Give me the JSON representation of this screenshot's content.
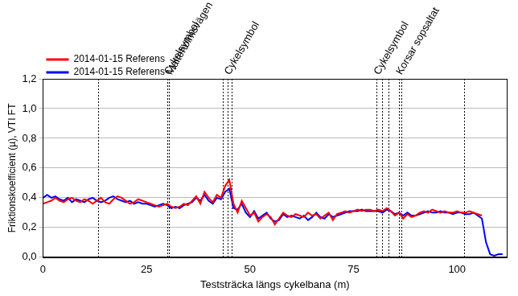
{
  "chart_data": {
    "type": "line",
    "x_label": "Teststräcka längs cykelbana (m)",
    "y_label": "Friktionskoefficient (µ), VTI FT",
    "xlim": [
      0,
      112
    ],
    "xticks": [
      0,
      25,
      50,
      75,
      100
    ],
    "ylim": [
      0,
      1.2
    ],
    "yticks": [
      {
        "value": 0,
        "label": "0,0"
      },
      {
        "value": 0.2,
        "label": "0,2"
      },
      {
        "value": 0.4,
        "label": "0,4"
      },
      {
        "value": 0.6,
        "label": "0,6"
      },
      {
        "value": 0.8,
        "label": "0,8"
      },
      {
        "value": 1.0,
        "label": "1,0"
      },
      {
        "value": 1.2,
        "label": "1,2"
      }
    ],
    "grid": "y",
    "legend": "top-left",
    "vlines": [
      13.3,
      30,
      30.5,
      43.5,
      44.5,
      45.5,
      80.6,
      81.8,
      83.4,
      86,
      86.5,
      101.8
    ],
    "annotations": [
      {
        "text": "Cykelsymbol",
        "x": 30
      },
      {
        "text": "Malteholmsvägen",
        "x": 30.5
      },
      {
        "text": "Cykelsymbol",
        "x": 44.5
      },
      {
        "text": "Cykelsymbol",
        "x": 80.6
      },
      {
        "text": "Korsar sopsaltat",
        "x": 86
      }
    ],
    "series": [
      {
        "name": "2014-01-15 Referens",
        "color": "#ff0000",
        "x": [
          0,
          1,
          2,
          3,
          4,
          5,
          6,
          7,
          8,
          9,
          10,
          11,
          12,
          13,
          14,
          15,
          16,
          17,
          18,
          19,
          20,
          21,
          22,
          23,
          24,
          25,
          26,
          27,
          28,
          29,
          30,
          31,
          32,
          33,
          34,
          35,
          36,
          37,
          38,
          39,
          40,
          41,
          42,
          43,
          44,
          45,
          46,
          47,
          48,
          49,
          50,
          51,
          52,
          53,
          54,
          55,
          56,
          57,
          58,
          59,
          60,
          61,
          62,
          63,
          64,
          65,
          66,
          67,
          68,
          69,
          70,
          71,
          72,
          73,
          74,
          75,
          76,
          77,
          78,
          79,
          80,
          81,
          82,
          83,
          84,
          85,
          86,
          87,
          88,
          89,
          90,
          91,
          92,
          93,
          94,
          95,
          96,
          97,
          98,
          99,
          100,
          101,
          102,
          103,
          104,
          105,
          106
        ],
        "values": [
          0.36,
          0.37,
          0.38,
          0.4,
          0.38,
          0.37,
          0.39,
          0.4,
          0.38,
          0.37,
          0.39,
          0.38,
          0.36,
          0.38,
          0.4,
          0.37,
          0.36,
          0.39,
          0.41,
          0.4,
          0.38,
          0.36,
          0.37,
          0.39,
          0.38,
          0.37,
          0.36,
          0.35,
          0.34,
          0.35,
          0.36,
          0.34,
          0.33,
          0.34,
          0.36,
          0.35,
          0.38,
          0.41,
          0.36,
          0.44,
          0.4,
          0.37,
          0.42,
          0.4,
          0.48,
          0.52,
          0.36,
          0.3,
          0.38,
          0.33,
          0.28,
          0.3,
          0.24,
          0.27,
          0.29,
          0.27,
          0.22,
          0.26,
          0.3,
          0.28,
          0.27,
          0.29,
          0.28,
          0.27,
          0.3,
          0.28,
          0.29,
          0.26,
          0.28,
          0.3,
          0.25,
          0.29,
          0.3,
          0.31,
          0.3,
          0.31,
          0.32,
          0.31,
          0.32,
          0.32,
          0.31,
          0.32,
          0.31,
          0.33,
          0.31,
          0.28,
          0.3,
          0.26,
          0.29,
          0.27,
          0.28,
          0.3,
          0.31,
          0.3,
          0.32,
          0.31,
          0.3,
          0.31,
          0.3,
          0.3,
          0.31,
          0.3,
          0.3,
          0.31,
          0.3,
          0.29,
          0.28
        ]
      },
      {
        "name": "2014-01-15 Referens",
        "color": "#0000ff",
        "x": [
          0,
          1,
          2,
          3,
          4,
          5,
          6,
          7,
          8,
          9,
          10,
          11,
          12,
          13,
          14,
          15,
          16,
          17,
          18,
          19,
          20,
          21,
          22,
          23,
          24,
          25,
          26,
          27,
          28,
          29,
          30,
          31,
          32,
          33,
          34,
          35,
          36,
          37,
          38,
          39,
          40,
          41,
          42,
          43,
          44,
          45,
          46,
          47,
          48,
          49,
          50,
          51,
          52,
          53,
          54,
          55,
          56,
          57,
          58,
          59,
          60,
          61,
          62,
          63,
          64,
          65,
          66,
          67,
          68,
          69,
          70,
          71,
          72,
          73,
          74,
          75,
          76,
          77,
          78,
          79,
          80,
          81,
          82,
          83,
          84,
          85,
          86,
          87,
          88,
          89,
          90,
          91,
          92,
          93,
          94,
          95,
          96,
          97,
          98,
          99,
          100,
          101,
          102,
          103,
          104,
          105,
          106,
          107,
          108,
          109,
          110,
          111
        ],
        "values": [
          0.4,
          0.42,
          0.4,
          0.41,
          0.39,
          0.38,
          0.4,
          0.37,
          0.39,
          0.38,
          0.37,
          0.39,
          0.4,
          0.38,
          0.37,
          0.38,
          0.4,
          0.41,
          0.39,
          0.38,
          0.37,
          0.38,
          0.36,
          0.37,
          0.36,
          0.36,
          0.35,
          0.34,
          0.35,
          0.36,
          0.35,
          0.33,
          0.34,
          0.33,
          0.35,
          0.36,
          0.37,
          0.4,
          0.38,
          0.42,
          0.38,
          0.36,
          0.4,
          0.39,
          0.44,
          0.46,
          0.33,
          0.32,
          0.36,
          0.3,
          0.27,
          0.31,
          0.26,
          0.28,
          0.3,
          0.26,
          0.24,
          0.25,
          0.29,
          0.27,
          0.28,
          0.27,
          0.26,
          0.28,
          0.25,
          0.27,
          0.3,
          0.27,
          0.26,
          0.29,
          0.27,
          0.28,
          0.29,
          0.3,
          0.31,
          0.31,
          0.31,
          0.32,
          0.31,
          0.31,
          0.31,
          0.31,
          0.3,
          0.32,
          0.31,
          0.29,
          0.3,
          0.28,
          0.3,
          0.28,
          0.28,
          0.29,
          0.3,
          0.31,
          0.3,
          0.3,
          0.31,
          0.3,
          0.3,
          0.29,
          0.3,
          0.3,
          0.29,
          0.29,
          0.3,
          0.28,
          0.26,
          0.1,
          0.02,
          0.01,
          0.02,
          0.02
        ]
      }
    ]
  }
}
